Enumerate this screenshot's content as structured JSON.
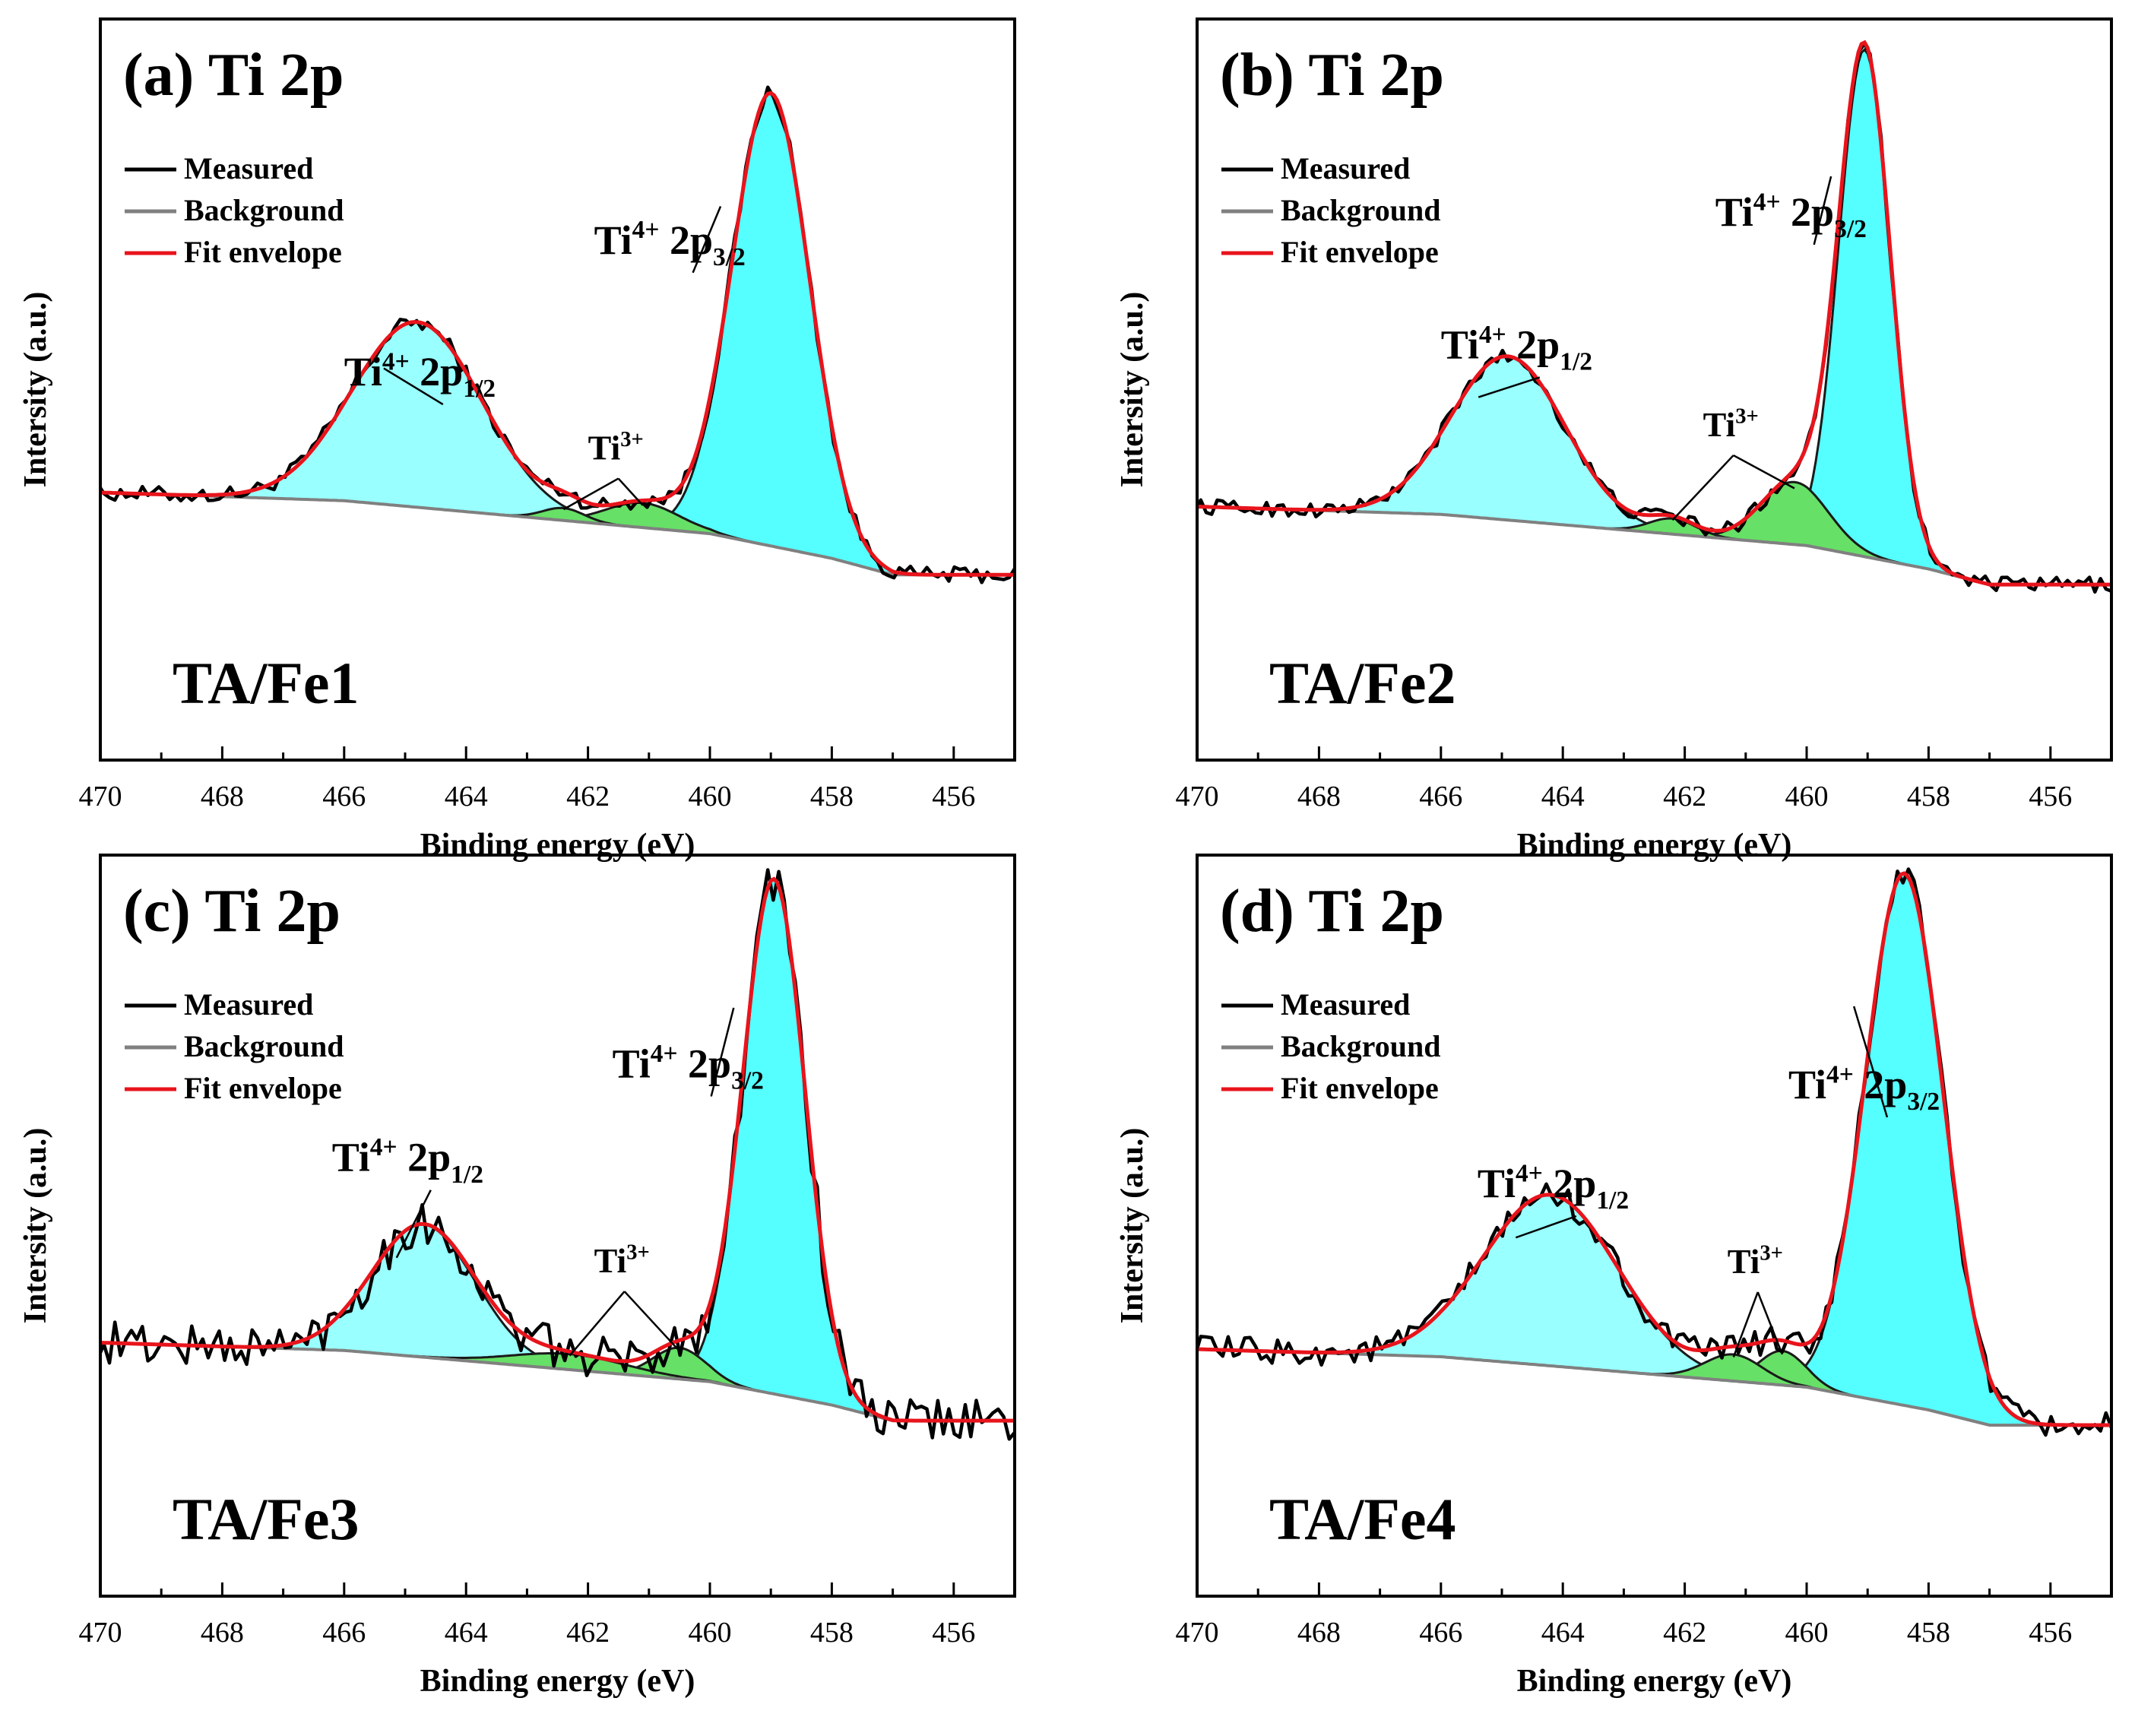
{
  "chart_data": [
    {
      "type": "line",
      "panel_label": "(a)",
      "title": "Ti 2p",
      "sample": "TA/Fe1",
      "xlabel": "Binding energy (eV)",
      "ylabel": "Intersity (a.u.)",
      "xlim": [
        470,
        455
      ],
      "x_reversed": true,
      "x_ticks": [
        470,
        468,
        466,
        464,
        462,
        460,
        458,
        456
      ],
      "y_tick_labels": false,
      "legend": [
        "Measured",
        "Background",
        "Fit envelope"
      ],
      "legend_position": "top-left",
      "colors": {
        "measured": "#000000",
        "background": "#808080",
        "fit": "#e8141c",
        "ti4_fill": "#99ffff",
        "ti4_32_fill": "#55ffff",
        "ti3_fill": "#66e066"
      },
      "baseline": [
        [
          470,
          0.2
        ],
        [
          466,
          0.18
        ],
        [
          463,
          0.14
        ],
        [
          460,
          0.1
        ],
        [
          458,
          0.04
        ],
        [
          457,
          0.0
        ],
        [
          455,
          0.0
        ]
      ],
      "peaks": [
        {
          "label": "Ti4+ 2p3/2",
          "center": 459.0,
          "height": 1.1,
          "fwhm": 1.5,
          "fill": "ti4_32_fill"
        },
        {
          "label": "Ti4+ 2p1/2",
          "center": 464.8,
          "height": 0.45,
          "fwhm": 2.5,
          "fill": "ti4_fill"
        },
        {
          "label": "Ti3+",
          "center": 461.1,
          "height": 0.06,
          "fwhm": 1.4,
          "fill": "ti3_fill"
        },
        {
          "label": "Ti3+",
          "center": 462.4,
          "height": 0.03,
          "fwhm": 0.8,
          "fill": "ti3_fill"
        }
      ],
      "noise": 0.012,
      "annotations": [
        {
          "label": "Ti4+ 2p3/2",
          "text_x": 461.9,
          "text_y": 0.78
        },
        {
          "label": "Ti4+ 2p1/2",
          "text_x": 466.0,
          "text_y": 0.46
        },
        {
          "label": "Ti3+",
          "text_x": 462.0,
          "text_y": 0.28
        }
      ],
      "ylim": [
        -0.45,
        1.35
      ]
    },
    {
      "type": "line",
      "panel_label": "(b)",
      "title": "Ti 2p",
      "sample": "TA/Fe2",
      "xlabel": "Binding energy (eV)",
      "ylabel": "Intersity (a.u.)",
      "xlim": [
        470,
        455
      ],
      "x_reversed": true,
      "x_ticks": [
        470,
        468,
        466,
        464,
        462,
        460,
        458,
        456
      ],
      "y_tick_labels": false,
      "legend": [
        "Measured",
        "Background",
        "Fit envelope"
      ],
      "legend_position": "top-left",
      "colors": {
        "measured": "#000000",
        "background": "#808080",
        "fit": "#e8141c",
        "ti4_fill": "#99ffff",
        "ti4_32_fill": "#55ffff",
        "ti3_fill": "#66e066"
      },
      "baseline": [
        [
          470,
          0.2
        ],
        [
          466,
          0.18
        ],
        [
          463,
          0.14
        ],
        [
          460,
          0.1
        ],
        [
          458,
          0.04
        ],
        [
          457,
          0.0
        ],
        [
          455,
          0.0
        ]
      ],
      "peaks": [
        {
          "label": "Ti4+ 2p3/2",
          "center": 459.05,
          "height": 1.3,
          "fwhm": 1.0,
          "fill": "ti4_32_fill"
        },
        {
          "label": "Ti4+ 2p1/2",
          "center": 464.9,
          "height": 0.42,
          "fwhm": 2.2,
          "fill": "ti4_fill"
        },
        {
          "label": "Ti3+",
          "center": 460.2,
          "height": 0.16,
          "fwhm": 1.3,
          "fill": "ti3_fill"
        },
        {
          "label": "Ti3+",
          "center": 462.2,
          "height": 0.04,
          "fwhm": 0.9,
          "fill": "ti3_fill"
        }
      ],
      "noise": 0.012,
      "annotations": [
        {
          "label": "Ti4+ 2p3/2",
          "text_x": 461.5,
          "text_y": 0.92
        },
        {
          "label": "Ti4+ 2p1/2",
          "text_x": 466.0,
          "text_y": 0.58
        },
        {
          "label": "Ti3+",
          "text_x": 461.7,
          "text_y": 0.38
        }
      ],
      "ylim": [
        -0.45,
        1.45
      ]
    },
    {
      "type": "line",
      "panel_label": "(c)",
      "title": "Ti 2p",
      "sample": "TA/Fe3",
      "xlabel": "Binding energy (eV)",
      "ylabel": "Intersity (a.u.)",
      "xlim": [
        470,
        455
      ],
      "x_reversed": true,
      "x_ticks": [
        470,
        468,
        466,
        464,
        462,
        460,
        458,
        456
      ],
      "y_tick_labels": false,
      "legend": [
        "Measured",
        "Background",
        "Fit envelope"
      ],
      "legend_position": "top-left",
      "colors": {
        "measured": "#000000",
        "background": "#808080",
        "fit": "#e8141c",
        "ti4_fill": "#99ffff",
        "ti4_32_fill": "#55ffff",
        "ti3_fill": "#66e066"
      },
      "baseline": [
        [
          470,
          0.2
        ],
        [
          466,
          0.18
        ],
        [
          463,
          0.14
        ],
        [
          460,
          0.1
        ],
        [
          458,
          0.04
        ],
        [
          457,
          0.0
        ],
        [
          455,
          0.0
        ]
      ],
      "peaks": [
        {
          "label": "Ti4+ 2p3/2",
          "center": 458.95,
          "height": 1.32,
          "fwhm": 1.2,
          "fill": "ti4_32_fill"
        },
        {
          "label": "Ti4+ 2p1/2",
          "center": 464.7,
          "height": 0.34,
          "fwhm": 2.0,
          "fill": "ti4_fill"
        },
        {
          "label": "Ti3+",
          "center": 460.5,
          "height": 0.08,
          "fwhm": 1.0,
          "fill": "ti3_fill"
        },
        {
          "label": "Ti3+",
          "center": 462.3,
          "height": 0.04,
          "fwhm": 2.2,
          "fill": "ti3_fill"
        }
      ],
      "noise": 0.035,
      "annotations": [
        {
          "label": "Ti4+ 2p3/2",
          "text_x": 461.6,
          "text_y": 0.88
        },
        {
          "label": "Ti4+ 2p1/2",
          "text_x": 466.2,
          "text_y": 0.64
        },
        {
          "label": "Ti3+",
          "text_x": 461.9,
          "text_y": 0.38
        }
      ],
      "ylim": [
        -0.45,
        1.45
      ]
    },
    {
      "type": "line",
      "panel_label": "(d)",
      "title": "Ti 2p",
      "sample": "TA/Fe4",
      "xlabel": "Binding energy (eV)",
      "ylabel": "Intersity (a.u.)",
      "xlim": [
        470,
        455
      ],
      "x_reversed": true,
      "x_ticks": [
        470,
        468,
        466,
        464,
        462,
        460,
        458,
        456
      ],
      "y_tick_labels": false,
      "legend": [
        "Measured",
        "Background",
        "Fit envelope"
      ],
      "legend_position": "top-left",
      "colors": {
        "measured": "#000000",
        "background": "#808080",
        "fit": "#e8141c",
        "ti4_fill": "#99ffff",
        "ti4_32_fill": "#55ffff",
        "ti3_fill": "#66e066"
      },
      "baseline": [
        [
          470,
          0.2
        ],
        [
          466,
          0.18
        ],
        [
          463,
          0.14
        ],
        [
          460,
          0.1
        ],
        [
          458,
          0.04
        ],
        [
          457,
          0.0
        ],
        [
          455,
          0.0
        ]
      ],
      "peaks": [
        {
          "label": "Ti4+ 2p3/2",
          "center": 458.4,
          "height": 1.4,
          "fwhm": 1.5,
          "fill": "ti4_32_fill"
        },
        {
          "label": "Ti4+ 2p1/2",
          "center": 464.2,
          "height": 0.45,
          "fwhm": 2.6,
          "fill": "ti4_fill"
        },
        {
          "label": "Ti3+",
          "center": 460.4,
          "height": 0.09,
          "fwhm": 0.9,
          "fill": "ti3_fill"
        },
        {
          "label": "Ti3+",
          "center": 461.2,
          "height": 0.07,
          "fwhm": 1.1,
          "fill": "ti3_fill"
        }
      ],
      "noise": 0.022,
      "annotations": [
        {
          "label": "Ti4+ 2p3/2",
          "text_x": 460.3,
          "text_y": 0.86
        },
        {
          "label": "Ti4+ 2p1/2",
          "text_x": 465.4,
          "text_y": 0.6
        },
        {
          "label": "Ti3+",
          "text_x": 461.3,
          "text_y": 0.4
        }
      ],
      "ylim": [
        -0.45,
        1.5
      ]
    }
  ]
}
